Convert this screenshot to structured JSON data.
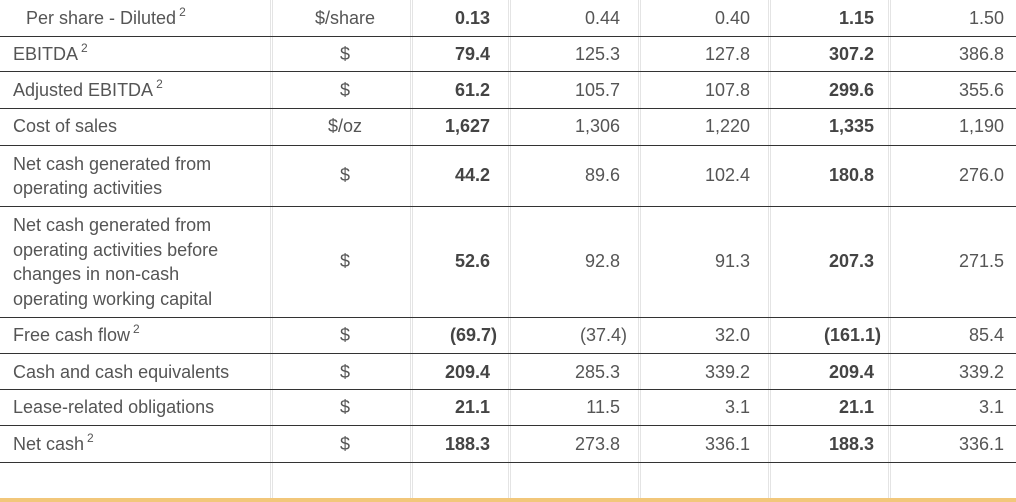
{
  "rows": [
    {
      "label": "Per share - Diluted",
      "sup": "2",
      "unit": "$/share",
      "v1": "0.13",
      "v2": "0.44",
      "v3": "0.40",
      "v4": "1.15",
      "v5": "1.50"
    },
    {
      "label": "EBITDA",
      "sup": "2",
      "unit": "$",
      "v1": "79.4",
      "v2": "125.3",
      "v3": "127.8",
      "v4": "307.2",
      "v5": "386.8"
    },
    {
      "label": "Adjusted EBITDA",
      "sup": "2",
      "unit": "$",
      "v1": "61.2",
      "v2": "105.7",
      "v3": "107.8",
      "v4": "299.6",
      "v5": "355.6"
    },
    {
      "label": "Cost of sales",
      "sup": "",
      "unit": "$/oz",
      "v1": "1,627",
      "v2": "1,306",
      "v3": "1,220",
      "v4": "1,335",
      "v5": "1,190"
    },
    {
      "label": "Net cash generated from operating activities",
      "sup": "",
      "unit": "$",
      "v1": "44.2",
      "v2": "89.6",
      "v3": "102.4",
      "v4": "180.8",
      "v5": "276.0"
    },
    {
      "label": "Net cash generated from operating activities before changes in non-cash operating working capital",
      "sup": "",
      "unit": "$",
      "v1": "52.6",
      "v2": "92.8",
      "v3": "91.3",
      "v4": "207.3",
      "v5": "271.5"
    },
    {
      "label": "Free cash flow",
      "sup": "2",
      "unit": "$",
      "v1": "(69.7)",
      "v2": "(37.4)",
      "v3": "32.0",
      "v4": "(161.1)",
      "v5": "85.4"
    },
    {
      "label": "Cash and cash equivalents",
      "sup": "",
      "unit": "$",
      "v1": "209.4",
      "v2": "285.3",
      "v3": "339.2",
      "v4": "209.4",
      "v5": "339.2"
    },
    {
      "label": "Lease-related obligations",
      "sup": "",
      "unit": "$",
      "v1": "21.1",
      "v2": "11.5",
      "v3": "3.1",
      "v4": "21.1",
      "v5": "3.1"
    },
    {
      "label": "Net cash",
      "sup": "2",
      "unit": "$",
      "v1": "188.3",
      "v2": "273.8",
      "v3": "336.1",
      "v4": "188.3",
      "v5": "336.1"
    }
  ]
}
